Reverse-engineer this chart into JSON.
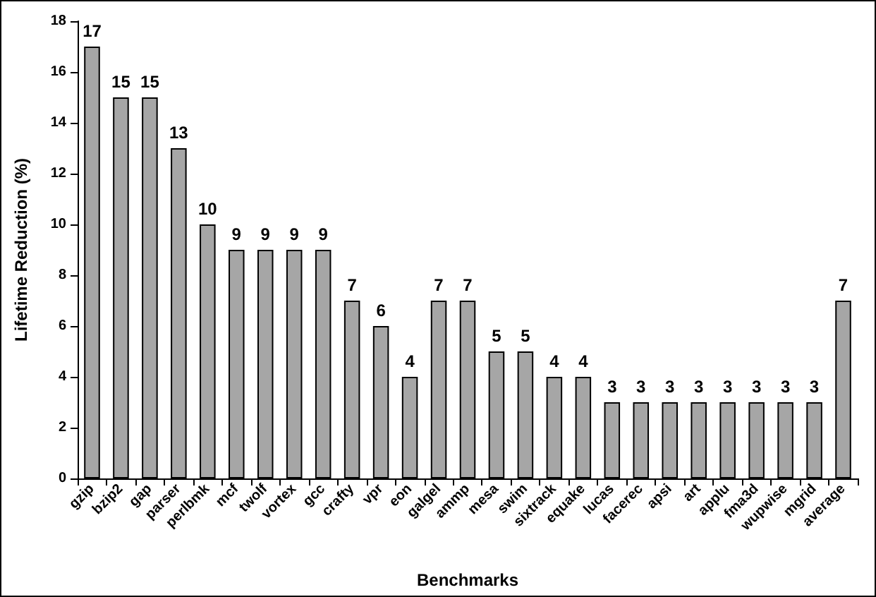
{
  "chart_data": {
    "type": "bar",
    "xlabel": "Benchmarks",
    "ylabel": "Lifetime Reduction (%)",
    "categories": [
      "gzip",
      "bzip2",
      "gap",
      "parser",
      "perlbmk",
      "mcf",
      "twolf",
      "vortex",
      "gcc",
      "crafty",
      "vpr",
      "eon",
      "galgel",
      "ammp",
      "mesa",
      "swim",
      "sixtrack",
      "equake",
      "lucas",
      "facerec",
      "apsi",
      "art",
      "applu",
      "fma3d",
      "wupwise",
      "mgrid",
      "average"
    ],
    "values": [
      17,
      15,
      15,
      13,
      10,
      9,
      9,
      9,
      9,
      7,
      6,
      4,
      7,
      7,
      5,
      5,
      4,
      4,
      3,
      3,
      3,
      3,
      3,
      3,
      3,
      3,
      7
    ],
    "color": "#a6a6a6",
    "ylim": [
      0,
      18
    ],
    "yticks": [
      0,
      2,
      4,
      6,
      8,
      10,
      12,
      14,
      16,
      18
    ],
    "data_labels": true
  }
}
